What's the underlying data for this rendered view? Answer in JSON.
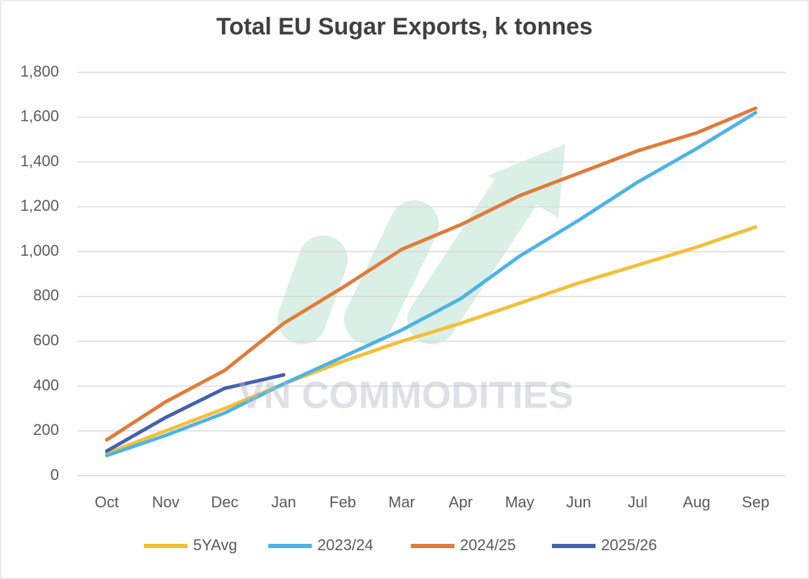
{
  "chart_data": {
    "type": "line",
    "title": "Total EU Sugar Exports, k tonnes",
    "watermark": "VN COMMODITIES",
    "categories": [
      "Oct",
      "Nov",
      "Dec",
      "Jan",
      "Feb",
      "Mar",
      "Apr",
      "May",
      "Jun",
      "Jul",
      "Aug",
      "Sep"
    ],
    "series": [
      {
        "name": "5YAvg",
        "color": "#f2c037",
        "values": [
          100,
          200,
          300,
          410,
          510,
          600,
          680,
          770,
          860,
          940,
          1020,
          1110
        ]
      },
      {
        "name": "2023/24",
        "color": "#4db3e6",
        "values": [
          90,
          180,
          280,
          410,
          530,
          650,
          790,
          980,
          1140,
          1310,
          1460,
          1620
        ]
      },
      {
        "name": "2024/25",
        "color": "#e07b39",
        "values": [
          160,
          330,
          470,
          680,
          840,
          1010,
          1120,
          1250,
          1350,
          1450,
          1530,
          1640
        ]
      },
      {
        "name": "2025/26",
        "color": "#4460b0",
        "values": [
          110,
          260,
          390,
          450,
          null,
          null,
          null,
          null,
          null,
          null,
          null,
          null
        ]
      }
    ],
    "ylim": [
      0,
      1800
    ],
    "yticks": [
      0,
      200,
      400,
      600,
      800,
      {
        "value": 1000,
        "label": "1,000"
      },
      {
        "value": 1200,
        "label": "1,200"
      },
      {
        "value": 1400,
        "label": "1,400"
      },
      {
        "value": 1600,
        "label": "1,600"
      },
      {
        "value": 1800,
        "label": "1,800"
      }
    ],
    "grid": true,
    "legend": "bottom"
  }
}
